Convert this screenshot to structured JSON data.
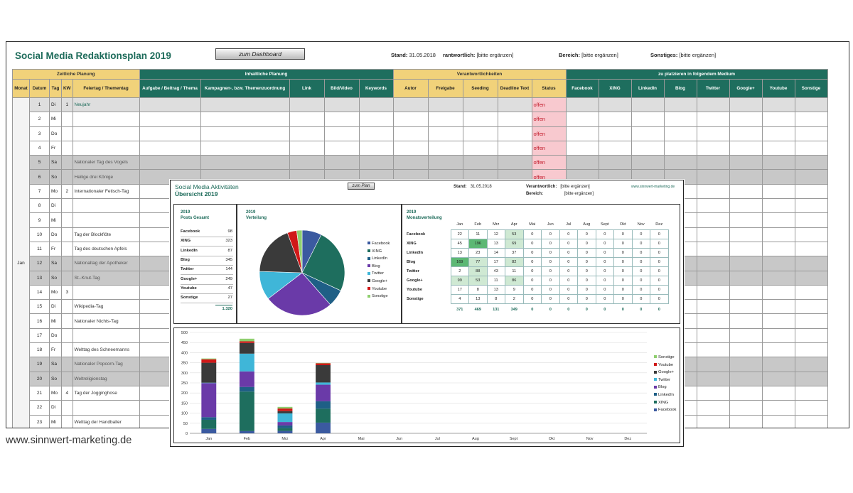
{
  "sheet": {
    "title": "Social Media Redaktionsplan 2019",
    "dashboard_button": "zum Dashboard",
    "stand_label": "Stand:",
    "stand_value": "31.05.2018",
    "verantwortlich_label": "rantwortlich:",
    "verantwortlich_value": "[bitte ergänzen]",
    "bereich_label": "Bereich:",
    "bereich_value": "[bitte ergänzen]",
    "sonstiges_label": "Sonstiges:",
    "sonstiges_value": "[bitte ergänzen]",
    "groups": [
      "Zeitliche Planung",
      "Inhaltliche Planung",
      "Verantwortlichkeiten",
      "zu platzieren in folgendem Medium"
    ],
    "columns": [
      "Monat",
      "Datum",
      "Tag",
      "KW",
      "Feiertag / Thementag",
      "Aufgabe / Beitrag / Thema",
      "Kampagnen-, bzw. Themenzuordnung",
      "Link",
      "Bild/Video",
      "Keywords",
      "Autor",
      "Freigabe",
      "Seeding",
      "Deadline Text",
      "Status",
      "Facebook",
      "XING",
      "LinkedIn",
      "Blog",
      "Twitter",
      "Google+",
      "Youtube",
      "Sonstige"
    ],
    "month": "Jan",
    "rows": [
      {
        "datum": "1",
        "tag": "Di",
        "kw": "1",
        "feiertag": "Neujahr",
        "status": "offen"
      },
      {
        "datum": "2",
        "tag": "Mi",
        "kw": "",
        "feiertag": "",
        "status": "offen"
      },
      {
        "datum": "3",
        "tag": "Do",
        "kw": "",
        "feiertag": "",
        "status": "offen"
      },
      {
        "datum": "4",
        "tag": "Fr",
        "kw": "",
        "feiertag": "",
        "status": "offen"
      },
      {
        "datum": "5",
        "tag": "Sa",
        "kw": "",
        "feiertag": "Nationaler Tag des Vogels",
        "status": "offen"
      },
      {
        "datum": "6",
        "tag": "So",
        "kw": "",
        "feiertag": "Heilige drei Könige",
        "status": "offen"
      },
      {
        "datum": "7",
        "tag": "Mo",
        "kw": "2",
        "feiertag": "Internationaler Fetisch-Tag",
        "status": ""
      },
      {
        "datum": "8",
        "tag": "Di",
        "kw": "",
        "feiertag": "",
        "status": ""
      },
      {
        "datum": "9",
        "tag": "Mi",
        "kw": "",
        "feiertag": "",
        "status": ""
      },
      {
        "datum": "10",
        "tag": "Do",
        "kw": "",
        "feiertag": "Tag der Blockflöte",
        "status": ""
      },
      {
        "datum": "11",
        "tag": "Fr",
        "kw": "",
        "feiertag": "Tag des deutschen Apfels",
        "status": ""
      },
      {
        "datum": "12",
        "tag": "Sa",
        "kw": "",
        "feiertag": "Nationaltag der Apotheker",
        "status": ""
      },
      {
        "datum": "13",
        "tag": "So",
        "kw": "",
        "feiertag": "St.-Knut-Tag",
        "status": ""
      },
      {
        "datum": "14",
        "tag": "Mo",
        "kw": "3",
        "feiertag": "",
        "status": ""
      },
      {
        "datum": "15",
        "tag": "Di",
        "kw": "",
        "feiertag": "Wikipedia-Tag",
        "status": ""
      },
      {
        "datum": "16",
        "tag": "Mi",
        "kw": "",
        "feiertag": "Nationaler Nichts-Tag",
        "status": ""
      },
      {
        "datum": "17",
        "tag": "Do",
        "kw": "",
        "feiertag": "",
        "status": ""
      },
      {
        "datum": "18",
        "tag": "Fr",
        "kw": "",
        "feiertag": "Welttag des Schneemanns",
        "status": ""
      },
      {
        "datum": "19",
        "tag": "Sa",
        "kw": "",
        "feiertag": "Nationaler Popcorn-Tag",
        "status": ""
      },
      {
        "datum": "20",
        "tag": "So",
        "kw": "",
        "feiertag": "Weltreligionstag",
        "status": ""
      },
      {
        "datum": "21",
        "tag": "Mo",
        "kw": "4",
        "feiertag": "Tag der Jogginghose",
        "status": ""
      },
      {
        "datum": "22",
        "tag": "Di",
        "kw": "",
        "feiertag": "",
        "status": ""
      },
      {
        "datum": "23",
        "tag": "Mi",
        "kw": "",
        "feiertag": "Welttag der Handballer",
        "status": ""
      }
    ]
  },
  "dashboard": {
    "title_line1": "Social Media Aktivitäten",
    "title_line2": "Übersicht 2019",
    "plan_button": "zum Plan",
    "stand_label": "Stand:",
    "stand_value": "31.05.2018",
    "verantwortlich_label": "Verantwortlich:",
    "verantwortlich_value": "[bitte ergänzen]",
    "bereich_label": "Bereich:",
    "bereich_value": "[bitte ergänzen]",
    "website": "www.sinnwert-marketing.de",
    "posts_title1": "2019",
    "posts_title2": "Posts Gesamt",
    "posts": [
      {
        "label": "Facebook",
        "value": "98"
      },
      {
        "label": "XING",
        "value": "323"
      },
      {
        "label": "LinkedIn",
        "value": "87"
      },
      {
        "label": "Blog",
        "value": "345"
      },
      {
        "label": "Twitter",
        "value": "144"
      },
      {
        "label": "Google+",
        "value": "249"
      },
      {
        "label": "Youtube",
        "value": "47"
      },
      {
        "label": "Sonstige",
        "value": "27"
      }
    ],
    "posts_total": "1.320",
    "verteilung_title1": "2019",
    "verteilung_title2": "Verteilung",
    "monthly_title1": "2019",
    "monthly_title2": "Monatsverteilung",
    "months": [
      "Jan",
      "Feb",
      "Mrz",
      "Apr",
      "Mai",
      "Jun",
      "Jul",
      "Aug",
      "Sept",
      "Okt",
      "Nov",
      "Dez"
    ],
    "monthly": [
      {
        "label": "Facebook",
        "values": [
          "22",
          "11",
          "12",
          "53",
          "0",
          "0",
          "0",
          "0",
          "0",
          "0",
          "0",
          "0"
        ]
      },
      {
        "label": "XING",
        "values": [
          "45",
          "196",
          "13",
          "69",
          "0",
          "0",
          "0",
          "0",
          "0",
          "0",
          "0",
          "0"
        ]
      },
      {
        "label": "LinkedIn",
        "values": [
          "13",
          "23",
          "14",
          "37",
          "0",
          "0",
          "0",
          "0",
          "0",
          "0",
          "0",
          "0"
        ]
      },
      {
        "label": "Blog",
        "values": [
          "169",
          "77",
          "17",
          "82",
          "0",
          "0",
          "0",
          "0",
          "0",
          "0",
          "0",
          "0"
        ]
      },
      {
        "label": "Twitter",
        "values": [
          "2",
          "88",
          "43",
          "11",
          "0",
          "0",
          "0",
          "0",
          "0",
          "0",
          "0",
          "0"
        ]
      },
      {
        "label": "Google+",
        "values": [
          "99",
          "53",
          "11",
          "86",
          "0",
          "0",
          "0",
          "0",
          "0",
          "0",
          "0",
          "0"
        ]
      },
      {
        "label": "Youtube",
        "values": [
          "17",
          "8",
          "13",
          "9",
          "0",
          "0",
          "0",
          "0",
          "0",
          "0",
          "0",
          "0"
        ]
      },
      {
        "label": "Sonstige",
        "values": [
          "4",
          "13",
          "8",
          "2",
          "0",
          "0",
          "0",
          "0",
          "0",
          "0",
          "0",
          "0"
        ]
      }
    ],
    "monthly_totals": [
      "371",
      "469",
      "131",
      "349",
      "0",
      "0",
      "0",
      "0",
      "0",
      "0",
      "0",
      "0"
    ],
    "highlight_colors": {
      "strong": "#5cb874",
      "light": "#cfe9d3"
    }
  },
  "footer": "www.sinnwert-marketing.de",
  "chart_data": [
    {
      "type": "pie",
      "title": "",
      "categories": [
        "Facebook",
        "XING",
        "LinkedIn",
        "Blog",
        "Twitter",
        "Google+",
        "Youtube",
        "Sonstige"
      ],
      "values": [
        98,
        323,
        87,
        345,
        144,
        249,
        47,
        27
      ],
      "colors": [
        "#3b5aa0",
        "#1e6e5e",
        "#1f5f86",
        "#6a3aa8",
        "#3fb6d8",
        "#3a3a3a",
        "#d01818",
        "#8fcf6f"
      ],
      "legend": "right"
    },
    {
      "type": "bar",
      "stacked": true,
      "categories": [
        "Jan",
        "Feb",
        "Mrz",
        "Apr",
        "Mai",
        "Jun",
        "Jul",
        "Aug",
        "Sept",
        "Okt",
        "Nov",
        "Dez"
      ],
      "series": [
        {
          "name": "Facebook",
          "values": [
            22,
            11,
            12,
            53,
            0,
            0,
            0,
            0,
            0,
            0,
            0,
            0
          ],
          "color": "#3b5aa0"
        },
        {
          "name": "XING",
          "values": [
            45,
            196,
            13,
            69,
            0,
            0,
            0,
            0,
            0,
            0,
            0,
            0
          ],
          "color": "#1e6e5e"
        },
        {
          "name": "LinkedIn",
          "values": [
            13,
            23,
            14,
            37,
            0,
            0,
            0,
            0,
            0,
            0,
            0,
            0
          ],
          "color": "#1f5f86"
        },
        {
          "name": "Blog",
          "values": [
            169,
            77,
            17,
            82,
            0,
            0,
            0,
            0,
            0,
            0,
            0,
            0
          ],
          "color": "#6a3aa8"
        },
        {
          "name": "Twitter",
          "values": [
            2,
            88,
            43,
            11,
            0,
            0,
            0,
            0,
            0,
            0,
            0,
            0
          ],
          "color": "#3fb6d8"
        },
        {
          "name": "Google+",
          "values": [
            99,
            53,
            11,
            86,
            0,
            0,
            0,
            0,
            0,
            0,
            0,
            0
          ],
          "color": "#3a3a3a"
        },
        {
          "name": "Youtube",
          "values": [
            17,
            8,
            13,
            9,
            0,
            0,
            0,
            0,
            0,
            0,
            0,
            0
          ],
          "color": "#d01818"
        },
        {
          "name": "Sonstige",
          "values": [
            4,
            13,
            8,
            2,
            0,
            0,
            0,
            0,
            0,
            0,
            0,
            0
          ],
          "color": "#8fcf6f"
        }
      ],
      "ylim": [
        0,
        500
      ],
      "yticks": [
        "0",
        "50",
        "100",
        "150",
        "200",
        "250",
        "300",
        "350",
        "400",
        "450",
        "500"
      ],
      "grid": true,
      "legend": "right"
    }
  ]
}
